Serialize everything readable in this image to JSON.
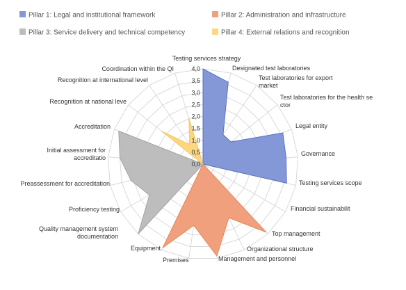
{
  "chart_data": {
    "type": "radar",
    "title": "",
    "rmax": 4.0,
    "ticks": [
      "0,0",
      "0,5",
      "1,0",
      "1,5",
      "2,0",
      "2,5",
      "3,0",
      "3,5",
      "4,0"
    ],
    "categories": [
      "Testing services strategy",
      "Designated test laboratories",
      "Test laboratories for export market",
      "Test laboratories for the health sector",
      "Legal entity",
      "Governance",
      "Testing services scope",
      "Financial sustainability",
      "Top management",
      "Organizational structure",
      "Management and personnel",
      "Premises",
      "Equipment",
      "Quality management system documentation",
      "Proficiency testing",
      "Preassessment for accreditation",
      "Initial assessment for accreditation",
      "Accreditation",
      "Recognition at national level",
      "Recognition at international level",
      "Coordination within the QI"
    ],
    "series": [
      {
        "name": "Pillar 1: Legal and institutional framework",
        "color": "#8497d6",
        "stroke": "#5b72c6",
        "values": [
          4.0,
          3.6,
          1.5,
          1.5,
          3.6,
          3.5,
          3.6,
          0,
          0,
          0,
          0,
          0,
          0,
          0,
          0,
          0,
          0,
          0,
          0,
          0,
          0
        ]
      },
      {
        "name": "Pillar 2: Administration and infrastructure",
        "color": "#f0a07d",
        "stroke": "#e8865a",
        "values": [
          0,
          0,
          0,
          0,
          0,
          0,
          0,
          0,
          3.9,
          2.5,
          3.9,
          2.6,
          3.9,
          0,
          0,
          0,
          0,
          0,
          0,
          0,
          0
        ]
      },
      {
        "name": "Service delivery and technical competency",
        "color": "#bdbdbd",
        "stroke": "#a3a3a3",
        "values": [
          0,
          0,
          0,
          0,
          0,
          0,
          0,
          0,
          0,
          0,
          0,
          0,
          0,
          4.0,
          2.6,
          3.1,
          3.5,
          3.8,
          0,
          0,
          0
        ]
      },
      {
        "name": "Pillar 4: External relations and recognition",
        "color": "#fcd683",
        "stroke": "#f5c85c",
        "values": [
          0,
          0,
          0,
          0,
          0,
          0,
          0,
          0,
          0,
          0,
          0,
          0,
          0,
          0,
          0,
          0,
          0,
          0,
          2.2,
          1.0,
          2.0
        ]
      }
    ],
    "legend": [
      {
        "label": "Pillar 1: Legal and institutional framework",
        "color": "#8497d6"
      },
      {
        "label": "Pillar 2: Administration and infrastructure",
        "color": "#f0a07d"
      },
      {
        "label": "Pillar 3: Service delivery and technical competency",
        "color": "#bdbdbd"
      },
      {
        "label": "Pillar 4: External relations and recognition",
        "color": "#fcd683"
      }
    ],
    "legend_position": "top",
    "grid": true,
    "gridColor": "#d9d9d9"
  }
}
